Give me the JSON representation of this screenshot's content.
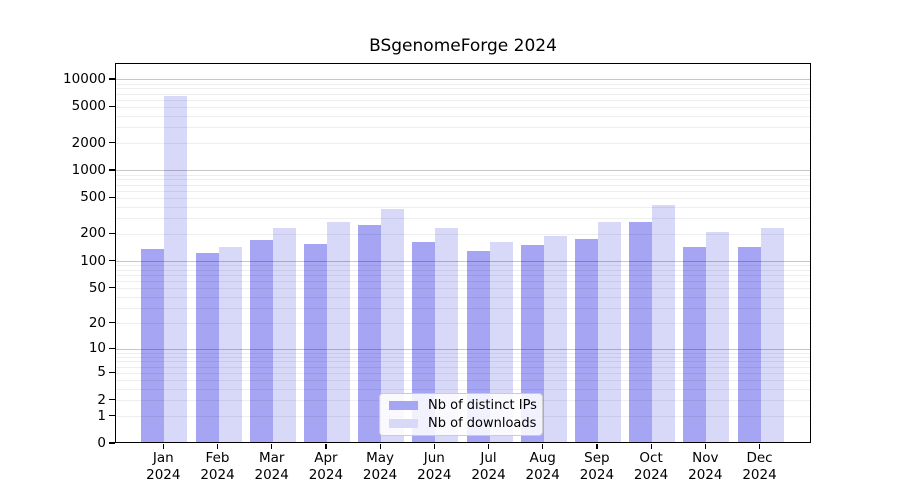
{
  "chart_data": {
    "type": "bar",
    "title": "BSgenomeForge 2024",
    "xlabel": "",
    "ylabel": "",
    "year": "2024",
    "categories": [
      "Jan",
      "Feb",
      "Mar",
      "Apr",
      "May",
      "Jun",
      "Jul",
      "Aug",
      "Sep",
      "Oct",
      "Nov",
      "Dec"
    ],
    "series": [
      {
        "name": "Nb of distinct IPs",
        "color": "#a5a5f3",
        "values": [
          130,
          117,
          165,
          148,
          240,
          158,
          126,
          145,
          170,
          258,
          138,
          138
        ]
      },
      {
        "name": "Nb of downloads",
        "color": "#d8d8f9",
        "values": [
          6300,
          139,
          222,
          262,
          362,
          221,
          157,
          184,
          262,
          404,
          200,
          222
        ]
      }
    ],
    "yticks": [
      0,
      1,
      2,
      5,
      10,
      20,
      50,
      100,
      200,
      500,
      1000,
      2000,
      5000,
      10000
    ],
    "scale": "log1p",
    "ylim": [
      0,
      15000
    ],
    "grid": "both",
    "legend_position": "lower-center",
    "colors": {
      "spine": "#000000",
      "major_grid": "#c7c7c7",
      "minor_grid": "#efefef",
      "background": "#ffffff"
    }
  }
}
